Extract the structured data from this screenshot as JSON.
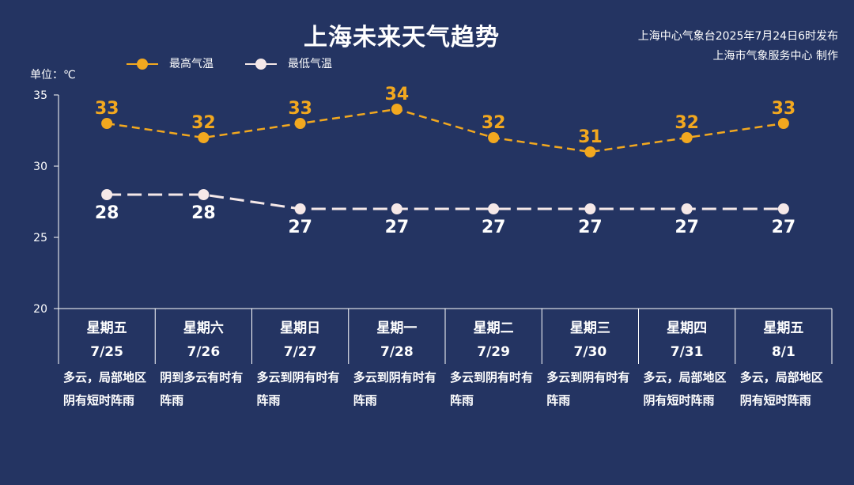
{
  "header": {
    "title": "上海未来天气趋势",
    "source_line1": "上海中心气象台2025年7月24日6时发布",
    "source_line2": "上海市气象服务中心 制作"
  },
  "legend": {
    "high_label": "最高气温",
    "low_label": "最低气温"
  },
  "unit_label": "单位：℃",
  "colors": {
    "background": "#243462",
    "high": "#f2a81f",
    "low": "#f5e8e8",
    "axis": "#ffffff"
  },
  "chart_data": {
    "type": "line",
    "ylim": [
      20,
      35
    ],
    "yticks": [
      "35",
      "30",
      "25",
      "20"
    ],
    "categories": [
      "7/25",
      "7/26",
      "7/27",
      "7/28",
      "7/29",
      "7/30",
      "7/31",
      "8/1"
    ],
    "weekdays": [
      "星期五",
      "星期六",
      "星期日",
      "星期一",
      "星期二",
      "星期三",
      "星期四",
      "星期五"
    ],
    "series": [
      {
        "name": "最高气温",
        "values": [
          33,
          32,
          33,
          34,
          32,
          31,
          32,
          33
        ]
      },
      {
        "name": "最低气温",
        "values": [
          28,
          28,
          27,
          27,
          27,
          27,
          27,
          27
        ]
      }
    ],
    "descriptions": [
      "多云，局部地区阴有短时阵雨",
      "阴到多云有时有阵雨",
      "多云到阴有时有阵雨",
      "多云到阴有时有阵雨",
      "多云到阴有时有阵雨",
      "多云到阴有时有阵雨",
      "多云，局部地区阴有短时阵雨",
      "多云，局部地区阴有短时阵雨"
    ],
    "grid": false,
    "legend_position": "top-left"
  }
}
